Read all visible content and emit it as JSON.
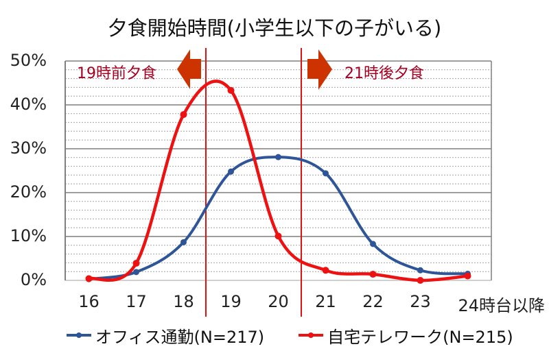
{
  "chart_data": {
    "type": "line",
    "title": "夕食開始時間(小学生以下の子がいる)",
    "xlabel": "",
    "ylabel": "",
    "categories": [
      "16",
      "17",
      "18",
      "19",
      "20",
      "21",
      "22",
      "23",
      "24時台以降"
    ],
    "ylim": [
      0,
      50
    ],
    "yticks": [
      "0%",
      "10%",
      "20%",
      "30%",
      "40%",
      "50%"
    ],
    "grid": {
      "major_step": 10,
      "minor_step": 2
    },
    "legend_position": "bottom",
    "series": [
      {
        "name": "オフィス通勤(N=217)",
        "color": "#2E5597",
        "values": [
          0.3,
          1.9,
          8.7,
          24.8,
          28.1,
          24.4,
          8.3,
          2.3,
          1.5
        ]
      },
      {
        "name": "自宅テレワーク(N=215)",
        "color": "#EE1111",
        "values": [
          0.4,
          3.9,
          37.8,
          43.3,
          10.1,
          2.3,
          1.4,
          0.0,
          1.0
        ]
      }
    ],
    "annotations": [
      {
        "text": "19時前夕食",
        "arrow": "left",
        "vline_between": [
          "18",
          "19"
        ]
      },
      {
        "text": "21時後夕食",
        "arrow": "right",
        "vline_between": [
          "20",
          "21"
        ]
      }
    ]
  },
  "colors": {
    "annotation_text": "#A50021",
    "arrow": "#CC3300",
    "vline": "#DD1111",
    "grid_major": "#7f7f7f",
    "grid_minor": "#a6a6a6"
  }
}
